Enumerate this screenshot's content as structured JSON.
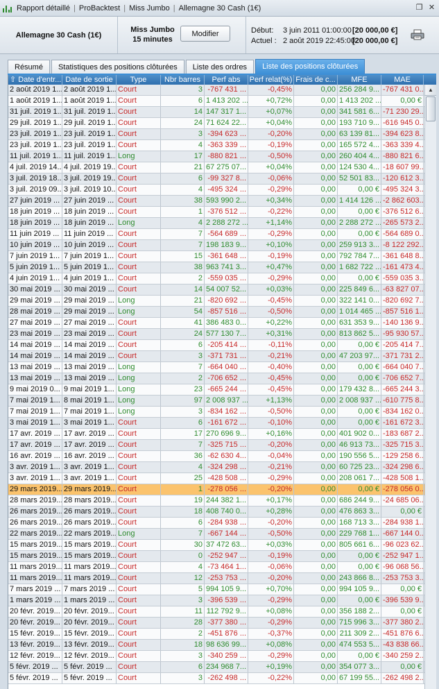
{
  "titlebar": {
    "crumbs": [
      "Rapport détaillé",
      "ProBacktest",
      "Miss Jumbo",
      "Allemagne 30 Cash (1€)"
    ]
  },
  "header": {
    "instrument": "Allemagne 30 Cash (1€)",
    "system_name": "Miss Jumbo",
    "timeframe": "15 minutes",
    "modify_label": "Modifier",
    "start_label": "Début:",
    "start_date": "3 juin 2011 01:00:00",
    "start_capital": "[20 000,00 €]",
    "current_label": "Actuel :",
    "current_date": "2 août 2019 22:45:00",
    "current_capital": "[20 000,00 €]"
  },
  "tabs": [
    {
      "label": "Résumé",
      "active": false
    },
    {
      "label": "Statistiques des positions clôturées",
      "active": false
    },
    {
      "label": "Liste des ordres",
      "active": false
    },
    {
      "label": "Liste des positions clôturées",
      "active": true
    }
  ],
  "columns": [
    "Date d'entr...",
    "Date de sortie",
    "Type",
    "Nbr barres",
    "Perf abs",
    "Perf relat(%)",
    "Frais de c...",
    "MFE",
    "MAE"
  ],
  "colors": {
    "positive": "#2e8b2e",
    "negative": "#c62828",
    "selected_row": "#fbc36d",
    "header": "#2e6fae"
  },
  "rows": [
    [
      "2 août 2019 1...",
      "2 août 2019 1...",
      "Court",
      "3",
      "-767 431 ...",
      "-0,45%",
      "0,00",
      "256 284 9...",
      "-767 431 0..."
    ],
    [
      "1 août 2019 1...",
      "1 août 2019 1...",
      "Court",
      "6",
      "1 413 202 ...",
      "+0,72%",
      "0,00",
      "1 413 202 ...",
      "0,00 €"
    ],
    [
      "31 juil. 2019 1...",
      "31 juil. 2019 1...",
      "Court",
      "14",
      "147 317 1...",
      "+0,07%",
      "0,00",
      "341 581 6...",
      "-71 230 29..."
    ],
    [
      "29 juil. 2019 1...",
      "29 juil. 2019 1...",
      "Court",
      "24",
      "71 624 22...",
      "+0,04%",
      "0,00",
      "193 710 9...",
      "-616 945 0..."
    ],
    [
      "23 juil. 2019 1...",
      "23 juil. 2019 1...",
      "Court",
      "3",
      "-394 623 ...",
      "-0,20%",
      "0,00",
      "63 139 81...",
      "-394 623 8..."
    ],
    [
      "23 juil. 2019 1...",
      "23 juil. 2019 1...",
      "Court",
      "4",
      "-363 339 ...",
      "-0,19%",
      "0,00",
      "165 572 4...",
      "-363 339 4..."
    ],
    [
      "11 juil. 2019 1...",
      "11 juil. 2019 1...",
      "Long",
      "17",
      "-880 821 ...",
      "-0,50%",
      "0,00",
      "260 404 4...",
      "-880 821 6..."
    ],
    [
      "4 juil. 2019 14...",
      "4 juil. 2019 19...",
      "Court",
      "21",
      "67 275 07...",
      "+0,04%",
      "0,00",
      "124 530 4...",
      "-18 607 99..."
    ],
    [
      "3 juil. 2019 18...",
      "3 juil. 2019 19...",
      "Court",
      "6",
      "-99 327 8...",
      "-0,06%",
      "0,00",
      "52 501 83...",
      "-120 612 3..."
    ],
    [
      "3 juil. 2019 09...",
      "3 juil. 2019 10...",
      "Court",
      "4",
      "-495 324 ...",
      "-0,29%",
      "0,00",
      "0,00 €",
      "-495 324 3..."
    ],
    [
      "27 juin 2019 ...",
      "27 juin 2019 ...",
      "Court",
      "38",
      "593 990 2...",
      "+0,34%",
      "0,00",
      "1 414 126 ...",
      "-2 862 603..."
    ],
    [
      "18 juin 2019 ...",
      "18 juin 2019 ...",
      "Court",
      "1",
      "-376 512 ...",
      "-0,22%",
      "0,00",
      "0,00 €",
      "-376 512 6..."
    ],
    [
      "18 juin 2019 ...",
      "18 juin 2019 ...",
      "Long",
      "4",
      "2 288 272 ...",
      "+1,14%",
      "0,00",
      "2 288 272 ...",
      "-265 573 2..."
    ],
    [
      "11 juin 2019 ...",
      "11 juin 2019 ...",
      "Court",
      "7",
      "-564 689 ...",
      "-0,29%",
      "0,00",
      "0,00 €",
      "-564 689 0..."
    ],
    [
      "10 juin 2019 ...",
      "10 juin 2019 ...",
      "Court",
      "7",
      "198 183 9...",
      "+0,10%",
      "0,00",
      "259 913 3...",
      "-8 122 292..."
    ],
    [
      "7 juin 2019 1...",
      "7 juin 2019 1...",
      "Court",
      "15",
      "-361 648 ...",
      "-0,19%",
      "0,00",
      "792 784 7...",
      "-361 648 8..."
    ],
    [
      "5 juin 2019 1...",
      "5 juin 2019 1...",
      "Court",
      "38",
      "963 741 3...",
      "+0,47%",
      "0,00",
      "1 682 722 ...",
      "-161 473 4..."
    ],
    [
      "4 juin 2019 1...",
      "4 juin 2019 1...",
      "Court",
      "2",
      "-559 035 ...",
      "-0,29%",
      "0,00",
      "0,00 €",
      "-559 035 3..."
    ],
    [
      "30 mai 2019 ...",
      "30 mai 2019 ...",
      "Court",
      "14",
      "54 007 52...",
      "+0,03%",
      "0,00",
      "225 849 6...",
      "-63 827 07..."
    ],
    [
      "29 mai 2019 ...",
      "29 mai 2019 ...",
      "Long",
      "21",
      "-820 692 ...",
      "-0,45%",
      "0,00",
      "322 141 0...",
      "-820 692 7..."
    ],
    [
      "28 mai 2019 ...",
      "29 mai 2019 ...",
      "Long",
      "54",
      "-857 516 ...",
      "-0,50%",
      "0,00",
      "1 014 465 ...",
      "-857 516 1..."
    ],
    [
      "27 mai 2019 ...",
      "27 mai 2019 ...",
      "Court",
      "41",
      "386 483 0...",
      "+0,22%",
      "0,00",
      "631 353 9...",
      "-140 136 9..."
    ],
    [
      "23 mai 2019 ...",
      "23 mai 2019 ...",
      "Court",
      "24",
      "577 130 7...",
      "+0,31%",
      "0,00",
      "813 862 5...",
      "-95 930 57..."
    ],
    [
      "14 mai 2019 ...",
      "14 mai 2019 ...",
      "Court",
      "6",
      "-205 414 ...",
      "-0,11%",
      "0,00",
      "0,00 €",
      "-205 414 7..."
    ],
    [
      "14 mai 2019 ...",
      "14 mai 2019 ...",
      "Court",
      "3",
      "-371 731 ...",
      "-0,21%",
      "0,00",
      "47 203 97...",
      "-371 731 2..."
    ],
    [
      "13 mai 2019 ...",
      "13 mai 2019 ...",
      "Long",
      "7",
      "-664 040 ...",
      "-0,40%",
      "0,00",
      "0,00 €",
      "-664 040 7..."
    ],
    [
      "13 mai 2019 ...",
      "13 mai 2019 ...",
      "Long",
      "2",
      "-706 652 ...",
      "-0,45%",
      "0,00",
      "0,00 €",
      "-706 652 7..."
    ],
    [
      "9 mai 2019 0...",
      "9 mai 2019 1...",
      "Long",
      "23",
      "-665 244 ...",
      "-0,45%",
      "0,00",
      "179 432 8...",
      "-665 244 3..."
    ],
    [
      "7 mai 2019 1...",
      "8 mai 2019 1...",
      "Long",
      "97",
      "2 008 937 ...",
      "+1,13%",
      "0,00",
      "2 008 937 ...",
      "-610 775 8..."
    ],
    [
      "7 mai 2019 1...",
      "7 mai 2019 1...",
      "Long",
      "3",
      "-834 162 ...",
      "-0,50%",
      "0,00",
      "0,00 €",
      "-834 162 0..."
    ],
    [
      "3 mai 2019 1...",
      "3 mai 2019 1...",
      "Court",
      "6",
      "-161 672 ...",
      "-0,10%",
      "0,00",
      "0,00 €",
      "-161 672 3..."
    ],
    [
      "17 avr. 2019 ...",
      "17 avr. 2019 ...",
      "Court",
      "17",
      "270 696 9...",
      "+0,16%",
      "0,00",
      "401 902 0...",
      "-183 687 2..."
    ],
    [
      "17 avr. 2019 ...",
      "17 avr. 2019 ...",
      "Court",
      "7",
      "-325 715 ...",
      "-0,20%",
      "0,00",
      "46 913 73...",
      "-325 715 3..."
    ],
    [
      "16 avr. 2019 ...",
      "16 avr. 2019 ...",
      "Court",
      "36",
      "-62 630 4...",
      "-0,04%",
      "0,00",
      "190 556 5...",
      "-129 258 6..."
    ],
    [
      "3 avr. 2019 1...",
      "3 avr. 2019 1...",
      "Court",
      "4",
      "-324 298 ...",
      "-0,21%",
      "0,00",
      "60 725 23...",
      "-324 298 6..."
    ],
    [
      "3 avr. 2019 1...",
      "3 avr. 2019 1...",
      "Court",
      "25",
      "-428 508 ...",
      "-0,29%",
      "0,00",
      "208 061 7...",
      "-428 508 1..."
    ],
    [
      "29 mars 2019...",
      "29 mars 2019...",
      "Court",
      "1",
      "-278 056 ...",
      "-0,20%",
      "0,00",
      "0,00 €",
      "-278 056 0..."
    ],
    [
      "28 mars 2019...",
      "28 mars 2019...",
      "Court",
      "19",
      "244 382 1...",
      "+0,17%",
      "0,00",
      "686 244 9...",
      "-24 685 06..."
    ],
    [
      "26 mars 2019...",
      "26 mars 2019...",
      "Court",
      "18",
      "408 740 0...",
      "+0,28%",
      "0,00",
      "476 863 3...",
      "0,00 €"
    ],
    [
      "26 mars 2019...",
      "26 mars 2019...",
      "Court",
      "6",
      "-284 938 ...",
      "-0,20%",
      "0,00",
      "168 713 3...",
      "-284 938 1..."
    ],
    [
      "22 mars 2019...",
      "22 mars 2019...",
      "Long",
      "7",
      "-667 144 ...",
      "-0,50%",
      "0,00",
      "229 768 1...",
      "-667 144 0..."
    ],
    [
      "15 mars 2019...",
      "15 mars 2019...",
      "Court",
      "30",
      "37 472 63...",
      "+0,03%",
      "0,00",
      "805 661 6...",
      "-96 023 62..."
    ],
    [
      "15 mars 2019...",
      "15 mars 2019...",
      "Court",
      "0",
      "-252 947 ...",
      "-0,19%",
      "0,00",
      "0,00 €",
      "-252 947 1..."
    ],
    [
      "11 mars 2019...",
      "11 mars 2019...",
      "Court",
      "4",
      "-73 464 1...",
      "-0,06%",
      "0,00",
      "0,00 €",
      "-96 068 56..."
    ],
    [
      "11 mars 2019...",
      "11 mars 2019...",
      "Court",
      "12",
      "-253 753 ...",
      "-0,20%",
      "0,00",
      "243 866 8...",
      "-253 753 3..."
    ],
    [
      "7 mars 2019 ...",
      "7 mars 2019 ...",
      "Court",
      "5",
      "994 105 9...",
      "+0,70%",
      "0,00",
      "994 105 9...",
      "0,00 €"
    ],
    [
      "1 mars 2019 ...",
      "1 mars 2019 ...",
      "Court",
      "3",
      "-396 539 ...",
      "-0,29%",
      "0,00",
      "0,00 €",
      "-396 539 9..."
    ],
    [
      "20 févr. 2019...",
      "20 févr. 2019...",
      "Court",
      "11",
      "112 792 9...",
      "+0,08%",
      "0,00",
      "356 188 2...",
      "0,00 €"
    ],
    [
      "20 févr. 2019...",
      "20 févr. 2019...",
      "Court",
      "28",
      "-377 380 ...",
      "-0,29%",
      "0,00",
      "715 996 3...",
      "-377 380 2..."
    ],
    [
      "15 févr. 2019...",
      "15 févr. 2019...",
      "Court",
      "2",
      "-451 876 ...",
      "-0,37%",
      "0,00",
      "211 309 2...",
      "-451 876 6..."
    ],
    [
      "13 févr. 2019...",
      "13 févr. 2019...",
      "Court",
      "18",
      "98 636 99...",
      "+0,08%",
      "0,00",
      "474 553 5...",
      "-43 838 66..."
    ],
    [
      "12 févr. 2019...",
      "12 févr. 2019...",
      "Court",
      "3",
      "-340 259 ...",
      "-0,29%",
      "0,00",
      "0,00 €",
      "-340 259 2..."
    ],
    [
      "5 févr. 2019 ...",
      "5 févr. 2019 ...",
      "Court",
      "6",
      "234 968 7...",
      "+0,19%",
      "0,00",
      "354 077 3...",
      "0,00 €"
    ],
    [
      "5 févr. 2019 ...",
      "5 févr. 2019 ...",
      "Court",
      "3",
      "-262 498 ...",
      "-0,22%",
      "0,00",
      "67 199 55...",
      "-262 498 2..."
    ]
  ],
  "selected_row_index": 36
}
